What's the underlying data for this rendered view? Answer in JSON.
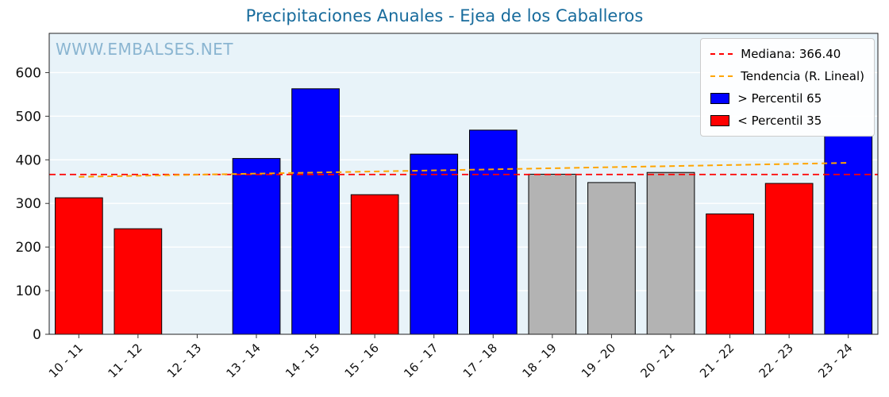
{
  "title": "Precipitaciones Anuales - Ejea de los Caballeros",
  "watermark": "WWW.EMBALSES.NET",
  "colors": {
    "title": "#176b9c",
    "watermark": "#8ab5d1",
    "plot_bg": "#e8f3f9",
    "grid": "#ffffff",
    "frame": "#222222",
    "median": "#ff0000",
    "trend": "#ffa500",
    "tick_text": "#111111"
  },
  "chart_data": {
    "type": "bar",
    "title": "Precipitaciones Anuales - Ejea de los Caballeros",
    "xlabel": "",
    "ylabel": "",
    "categories": [
      "10 - 11",
      "11 - 12",
      "12 - 13",
      "13 - 14",
      "14 - 15",
      "15 - 16",
      "16 - 17",
      "17 - 18",
      "18 - 19",
      "19 - 20",
      "20 - 21",
      "21 - 22",
      "22 - 23",
      "23 - 24"
    ],
    "values": [
      313,
      242,
      0,
      403,
      563,
      320,
      413,
      468,
      367,
      348,
      371,
      276,
      346,
      455
    ],
    "bar_colors": [
      "red",
      "red",
      "none",
      "blue",
      "blue",
      "red",
      "blue",
      "blue",
      "gray",
      "gray",
      "gray",
      "red",
      "red",
      "blue"
    ],
    "color_map": {
      "red": "#ff0000",
      "blue": "#0000ff",
      "gray": "#b3b3b3"
    },
    "median": 366.4,
    "trend": {
      "start": 361,
      "end": 393
    },
    "ylim": [
      0,
      690
    ],
    "yticks": [
      0,
      100,
      200,
      300,
      400,
      500,
      600
    ],
    "grid": true,
    "legend_position": "upper right",
    "legend": [
      {
        "label": "Mediana: 366.40",
        "type": "line",
        "color": "#ff0000",
        "icon": "median-dashed-line-icon"
      },
      {
        "label": "Tendencia (R. Lineal)",
        "type": "line",
        "color": "#ffa500",
        "icon": "trend-dashed-line-icon"
      },
      {
        "label": "> Percentil 65",
        "type": "patch",
        "color": "#0000ff",
        "icon": "blue-swatch-icon"
      },
      {
        "label": "< Percentil 35",
        "type": "patch",
        "color": "#ff0000",
        "icon": "red-swatch-icon"
      }
    ]
  }
}
